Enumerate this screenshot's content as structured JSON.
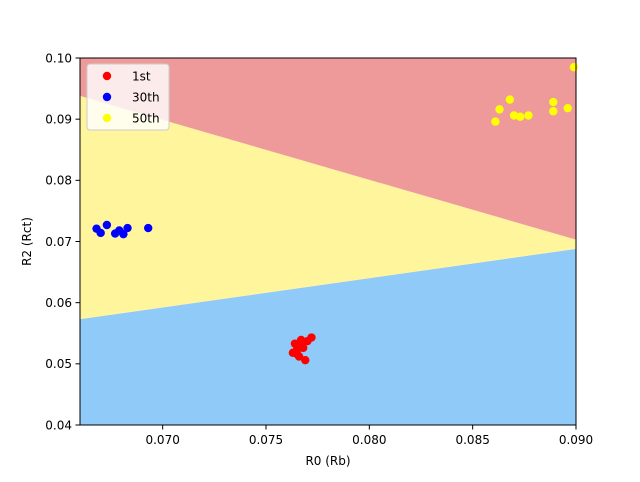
{
  "chart_data": {
    "type": "scatter",
    "title": "",
    "xlabel": "R0 (Rb)",
    "ylabel": "R2 (Rct)",
    "xlim": [
      0.066,
      0.09
    ],
    "ylim": [
      0.04,
      0.1
    ],
    "xticks": [
      0.07,
      0.075,
      0.08,
      0.085,
      0.09
    ],
    "xtick_labels": [
      "0.070",
      "0.075",
      "0.080",
      "0.085",
      "0.090"
    ],
    "yticks": [
      0.04,
      0.05,
      0.06,
      0.07,
      0.08,
      0.09,
      0.1
    ],
    "ytick_labels": [
      "0.04",
      "0.05",
      "0.06",
      "0.07",
      "0.08",
      "0.09",
      "0.10"
    ],
    "grid": false,
    "legend_position": "top-left",
    "decision_regions": [
      {
        "name": "1st",
        "color": "#90CAF9",
        "boundary_above": [
          [
            0.066,
            0.0573
          ],
          [
            0.09,
            0.0688
          ]
        ]
      },
      {
        "name": "30th",
        "color": "#FFF59D",
        "boundary_below": [
          [
            0.066,
            0.0573
          ],
          [
            0.09,
            0.0688
          ]
        ],
        "boundary_above": [
          [
            0.066,
            0.0938
          ],
          [
            0.09,
            0.0703
          ]
        ]
      },
      {
        "name": "50th",
        "color": "#EF9A9A",
        "boundary_below": [
          [
            0.066,
            0.0938
          ],
          [
            0.09,
            0.0703
          ]
        ]
      }
    ],
    "series": [
      {
        "name": "1st",
        "color": "#ff0000",
        "points": [
          [
            0.0763,
            0.0518
          ],
          [
            0.0764,
            0.0533
          ],
          [
            0.0765,
            0.0523
          ],
          [
            0.0765,
            0.0516
          ],
          [
            0.0766,
            0.0527
          ],
          [
            0.0766,
            0.0512
          ],
          [
            0.0767,
            0.0539
          ],
          [
            0.0767,
            0.053
          ],
          [
            0.0768,
            0.0535
          ],
          [
            0.0768,
            0.0526
          ],
          [
            0.0769,
            0.0506
          ],
          [
            0.077,
            0.0537
          ],
          [
            0.0772,
            0.0543
          ]
        ]
      },
      {
        "name": "30th",
        "color": "#0000ff",
        "points": [
          [
            0.0668,
            0.0721
          ],
          [
            0.067,
            0.0714
          ],
          [
            0.0673,
            0.0727
          ],
          [
            0.0677,
            0.0713
          ],
          [
            0.0679,
            0.0718
          ],
          [
            0.0681,
            0.0712
          ],
          [
            0.0683,
            0.0722
          ],
          [
            0.0693,
            0.0722
          ]
        ]
      },
      {
        "name": "50th",
        "color": "#ffff00",
        "points": [
          [
            0.0861,
            0.0896
          ],
          [
            0.0863,
            0.0916
          ],
          [
            0.0868,
            0.0932
          ],
          [
            0.087,
            0.0906
          ],
          [
            0.0873,
            0.0904
          ],
          [
            0.0877,
            0.0906
          ],
          [
            0.0889,
            0.0913
          ],
          [
            0.0889,
            0.0928
          ],
          [
            0.0896,
            0.0918
          ],
          [
            0.0899,
            0.0985
          ]
        ]
      }
    ]
  }
}
